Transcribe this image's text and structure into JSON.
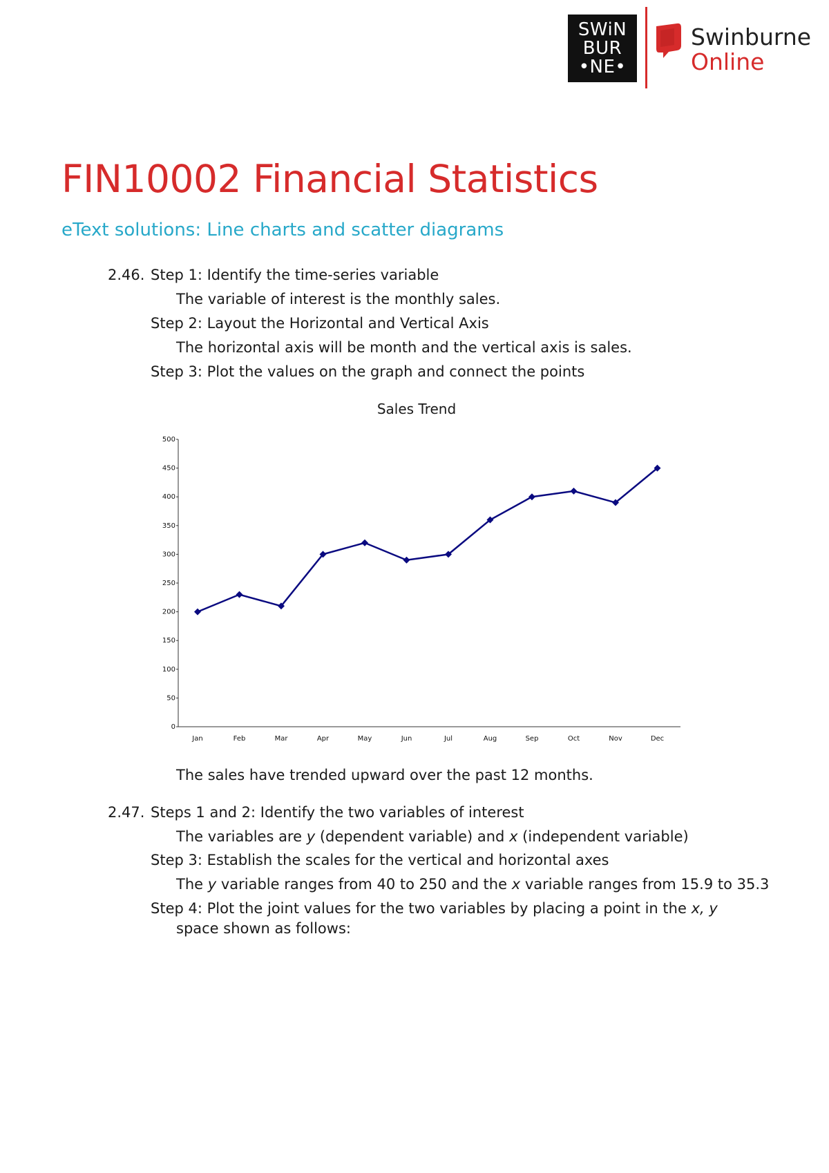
{
  "logos": {
    "swinburne_lines": [
      "SWiN",
      "BUR",
      "•NE•"
    ],
    "online_line1": "Swinburne",
    "online_line2": "Online",
    "brand_red": "#d62b2b"
  },
  "title": "FIN10002 Financial Statistics",
  "subtitle": "eText solutions: Line charts and scatter diagrams",
  "colors": {
    "title": "#d62b2b",
    "subtitle": "#27a8c9",
    "series": "#0a0a80"
  },
  "q246": {
    "number": "2.46.",
    "step1": "Step 1: Identify the time-series variable",
    "step1_detail": "The variable of interest is the monthly sales.",
    "step2": "Step 2: Layout the Horizontal and Vertical Axis",
    "step2_detail": "The horizontal axis will be month and the vertical axis is sales.",
    "step3": "Step 3: Plot the values on the graph and connect the points",
    "conclusion": "The sales have trended upward over the past 12 months."
  },
  "chart_data": {
    "type": "line",
    "title": "Sales Trend",
    "xlabel": "",
    "ylabel": "",
    "categories": [
      "Jan",
      "Feb",
      "Mar",
      "Apr",
      "May",
      "Jun",
      "Jul",
      "Aug",
      "Sep",
      "Oct",
      "Nov",
      "Dec"
    ],
    "series": [
      {
        "values": [
          200,
          230,
          210,
          300,
          320,
          290,
          300,
          360,
          400,
          410,
          390,
          450
        ]
      }
    ],
    "ylim": [
      0,
      500
    ],
    "yticks": [
      0,
      50,
      100,
      150,
      200,
      250,
      300,
      350,
      400,
      450,
      500
    ],
    "grid": false,
    "legend": "none"
  },
  "q247": {
    "number": "2.47.",
    "steps12": "Steps 1 and 2: Identify the two variables of interest",
    "vars_pre": "The variables are ",
    "vars_y": "y",
    "vars_mid": " (dependent variable) and ",
    "vars_x": "x",
    "vars_post": " (independent variable)",
    "step3": "Step 3: Establish the scales for the vertical and horizontal axes",
    "range_pre": "The ",
    "range_y": "y",
    "range_mid": " variable ranges from 40 to 250 and the ",
    "range_x": "x",
    "range_post": " variable ranges from 15.9 to 35.3",
    "step4_pre": "Step 4: Plot the joint values for the two variables by placing a point in the ",
    "step4_xy": "x, y",
    "step4_cont": "space shown as follows:"
  }
}
